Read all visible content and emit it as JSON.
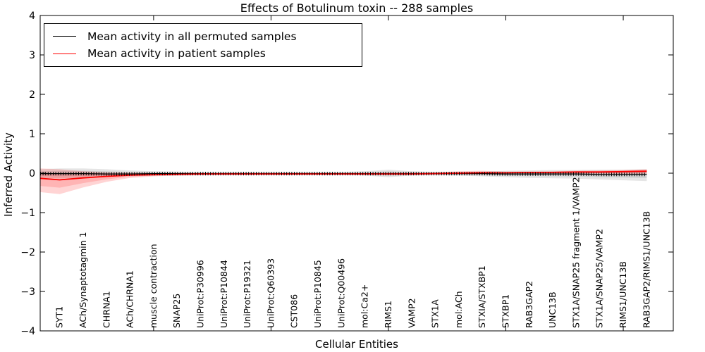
{
  "title": "Effects of Botulinum toxin -- 288 samples",
  "chart_data": {
    "type": "line",
    "title": "Effects of Botulinum toxin -- 288 samples",
    "xlabel": "Cellular Entities",
    "ylabel": "Inferred Activity",
    "ylim": [
      -4,
      4
    ],
    "xlim": [
      0.17,
      27.13
    ],
    "y_ticks": [
      "4",
      "3",
      "2",
      "1",
      "0",
      "−1",
      "−2",
      "−3",
      "−4"
    ],
    "y_tick_values": [
      4,
      3,
      2,
      1,
      0,
      -1,
      -2,
      -3,
      -4
    ],
    "x_tick_values": [
      5,
      10,
      15,
      20,
      25
    ],
    "grid": false,
    "legend_position": "upper left",
    "categories": [
      "SYT1",
      "ACh/Synaptotagmin 1",
      "CHRNA1",
      "ACh/CHRNA1",
      "muscle contraction",
      "SNAP25",
      "UniProt:P30996",
      "UniProt:P10844",
      "UniProt:P19321",
      "UniProt:Q60393",
      "CST086",
      "UniProt:P10845",
      "UniProt:Q00496",
      "mol:Ca2+",
      "RIMS1",
      "VAMP2",
      "STX1A",
      "mol:ACh",
      "STXIA/STXBP1",
      "STXBP1",
      "RAB3GAP2",
      "UNC13B",
      "STX1A/SNAP25 fragment 1/VAMP2",
      "STX1A/SNAP25/VAMP2",
      "RIMS1/UNC13B",
      "RAB3GAP2/RIMS1/UNC13B"
    ],
    "x": [
      0.17,
      1,
      2,
      3,
      4,
      5,
      6,
      7,
      8,
      9,
      10,
      11,
      12,
      13,
      14,
      15,
      16,
      17,
      18,
      19,
      20,
      21,
      22,
      23,
      24,
      25,
      26
    ],
    "series": [
      {
        "name": "Mean activity in all permuted samples",
        "color": "#000000",
        "band_color": "#000000",
        "values": [
          -0.01,
          -0.01,
          -0.01,
          -0.02,
          -0.02,
          -0.01,
          -0.01,
          -0.01,
          -0.01,
          -0.01,
          -0.01,
          -0.01,
          -0.01,
          -0.01,
          -0.01,
          -0.01,
          -0.01,
          -0.01,
          -0.01,
          -0.01,
          -0.02,
          -0.02,
          -0.02,
          -0.02,
          -0.03,
          -0.03,
          -0.03
        ],
        "band_hi": [
          0.1,
          0.12,
          0.12,
          0.1,
          0.07,
          0.05,
          0.04,
          0.03,
          0.03,
          0.03,
          0.03,
          0.03,
          0.03,
          0.03,
          0.05,
          0.09,
          0.05,
          0.03,
          0.03,
          0.04,
          0.06,
          0.07,
          0.08,
          0.08,
          0.09,
          0.09,
          0.1
        ],
        "band_lo": [
          -0.12,
          -0.13,
          -0.12,
          -0.09,
          -0.07,
          -0.05,
          -0.05,
          -0.05,
          -0.05,
          -0.04,
          -0.04,
          -0.04,
          -0.04,
          -0.04,
          -0.06,
          -0.1,
          -0.06,
          -0.05,
          -0.06,
          -0.08,
          -0.1,
          -0.12,
          -0.13,
          -0.14,
          -0.16,
          -0.18,
          -0.2
        ]
      },
      {
        "name": "Mean activity in patient samples",
        "color": "#ff0000",
        "band_color": "#ff0000",
        "values": [
          -0.13,
          -0.17,
          -0.12,
          -0.08,
          -0.05,
          -0.04,
          -0.03,
          -0.02,
          -0.02,
          -0.02,
          -0.02,
          -0.02,
          -0.02,
          -0.02,
          -0.02,
          -0.02,
          -0.02,
          -0.01,
          0.0,
          0.01,
          0.01,
          0.02,
          0.02,
          0.03,
          0.03,
          0.04,
          0.05
        ],
        "band_hi": [
          0.12,
          0.1,
          0.05,
          0.02,
          0.01,
          0.0,
          0.0,
          0.0,
          0.0,
          0.0,
          0.0,
          0.0,
          0.0,
          0.0,
          0.0,
          0.01,
          0.01,
          0.02,
          0.05,
          0.06,
          0.04,
          0.04,
          0.05,
          0.06,
          0.07,
          0.08,
          0.1
        ],
        "band_lo": [
          -0.48,
          -0.53,
          -0.36,
          -0.22,
          -0.12,
          -0.08,
          -0.06,
          -0.05,
          -0.04,
          -0.04,
          -0.04,
          -0.04,
          -0.04,
          -0.04,
          -0.04,
          -0.04,
          -0.04,
          -0.03,
          -0.02,
          -0.01,
          -0.01,
          -0.01,
          -0.01,
          -0.01,
          -0.01,
          -0.02,
          -0.02
        ]
      }
    ]
  }
}
